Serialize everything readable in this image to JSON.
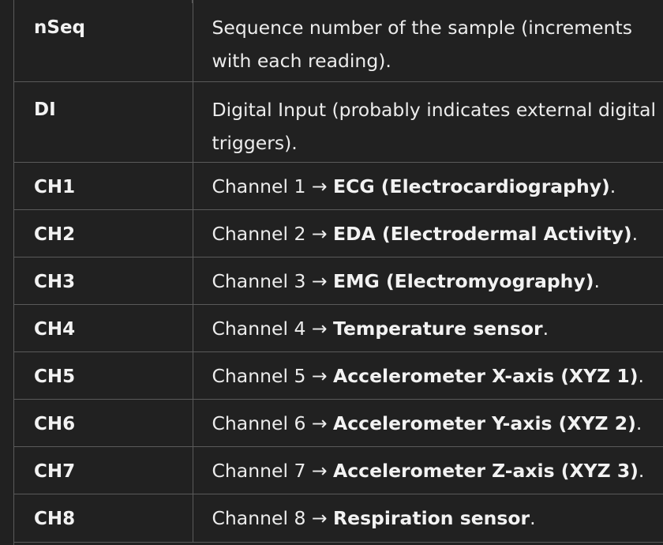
{
  "rows": [
    {
      "key": "nSeq",
      "desc": "Sequence number of the sample (increments with each reading).",
      "prefix": "",
      "bold": "",
      "suffix": ""
    },
    {
      "key": "DI",
      "desc": "Digital Input (probably indicates external digital triggers).",
      "prefix": "",
      "bold": "",
      "suffix": ""
    },
    {
      "key": "CH1",
      "prefix": "Channel 1 → ",
      "bold": "ECG (Electrocardiography)",
      "suffix": "."
    },
    {
      "key": "CH2",
      "prefix": "Channel 2 → ",
      "bold": "EDA (Electrodermal Activity)",
      "suffix": "."
    },
    {
      "key": "CH3",
      "prefix": "Channel 3 → ",
      "bold": "EMG (Electromyography)",
      "suffix": "."
    },
    {
      "key": "CH4",
      "prefix": "Channel 4 → ",
      "bold": "Temperature sensor",
      "suffix": "."
    },
    {
      "key": "CH5",
      "prefix": "Channel 5 → ",
      "bold": "Accelerometer X-axis (XYZ 1)",
      "suffix": "."
    },
    {
      "key": "CH6",
      "prefix": "Channel 6 → ",
      "bold": "Accelerometer Y-axis (XYZ 2)",
      "suffix": "."
    },
    {
      "key": "CH7",
      "prefix": "Channel 7 → ",
      "bold": "Accelerometer Z-axis (XYZ 3)",
      "suffix": "."
    },
    {
      "key": "CH8",
      "prefix": "Channel 8 → ",
      "bold": "Respiration sensor",
      "suffix": "."
    }
  ]
}
